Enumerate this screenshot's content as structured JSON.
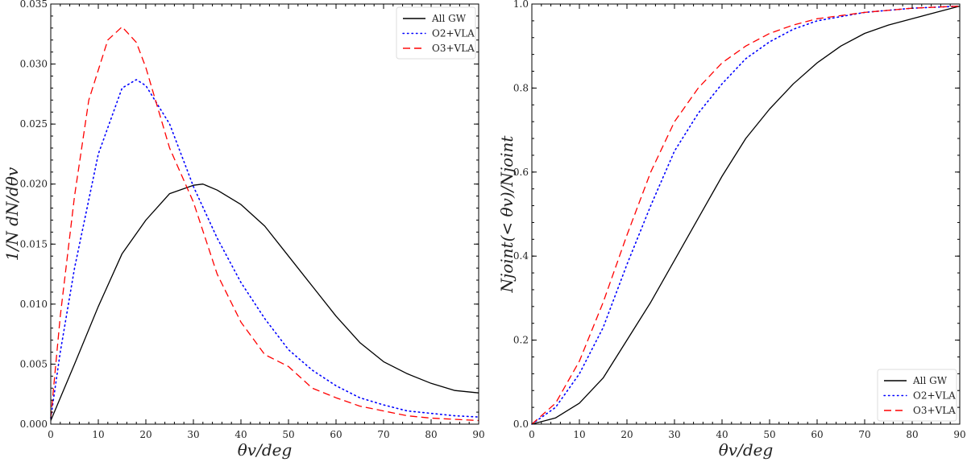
{
  "chart_data": [
    {
      "type": "line",
      "xlabel": "θv/deg",
      "ylabel": "1/N dN/dθv",
      "xlim": [
        0,
        90
      ],
      "ylim": [
        0,
        0.035
      ],
      "xticks": [
        "0",
        "10",
        "20",
        "30",
        "40",
        "50",
        "60",
        "70",
        "80",
        "90"
      ],
      "yticks": [
        "0.000",
        "0.005",
        "0.010",
        "0.015",
        "0.020",
        "0.025",
        "0.030",
        "0.035"
      ],
      "grid": false,
      "legend": "top-right",
      "series": [
        {
          "name": "All GW",
          "color": "#000000",
          "style": "solid",
          "x": [
            0,
            5,
            10,
            15,
            20,
            25,
            30,
            32,
            35,
            40,
            45,
            50,
            55,
            60,
            65,
            70,
            75,
            80,
            85,
            90
          ],
          "y": [
            0.0003,
            0.005,
            0.0098,
            0.0142,
            0.017,
            0.0192,
            0.0199,
            0.02,
            0.0195,
            0.0183,
            0.0165,
            0.014,
            0.0115,
            0.009,
            0.0068,
            0.0052,
            0.0042,
            0.0034,
            0.0028,
            0.0026
          ]
        },
        {
          "name": "O2+VLA",
          "color": "#0000ff",
          "style": "dotted",
          "x": [
            0,
            2,
            5,
            10,
            15,
            18,
            20,
            25,
            30,
            35,
            40,
            45,
            50,
            55,
            60,
            65,
            70,
            75,
            80,
            85,
            90
          ],
          "y": [
            0.0005,
            0.006,
            0.013,
            0.0225,
            0.028,
            0.0287,
            0.0282,
            0.025,
            0.0198,
            0.0155,
            0.0118,
            0.0088,
            0.0062,
            0.0045,
            0.0032,
            0.0022,
            0.0016,
            0.0011,
            0.0009,
            0.0007,
            0.0006
          ]
        },
        {
          "name": "O3+VLA",
          "color": "#ff0000",
          "style": "dashed",
          "x": [
            0,
            2,
            5,
            8,
            10,
            12,
            15,
            18,
            20,
            25,
            30,
            35,
            40,
            45,
            50,
            55,
            60,
            65,
            70,
            75,
            80,
            85,
            90
          ],
          "y": [
            0.0005,
            0.009,
            0.019,
            0.027,
            0.0295,
            0.032,
            0.0331,
            0.0318,
            0.0297,
            0.023,
            0.0185,
            0.0125,
            0.0085,
            0.0058,
            0.0048,
            0.003,
            0.0022,
            0.0015,
            0.0011,
            0.0007,
            0.0005,
            0.0004,
            0.0003
          ]
        }
      ]
    },
    {
      "type": "line",
      "xlabel": "θv/deg",
      "ylabel": "Njoint(< θv)/Njoint",
      "xlim": [
        0,
        90
      ],
      "ylim": [
        0,
        1.0
      ],
      "xticks": [
        "0",
        "10",
        "20",
        "30",
        "40",
        "50",
        "60",
        "70",
        "80",
        "90"
      ],
      "yticks": [
        "0.0",
        "0.2",
        "0.4",
        "0.6",
        "0.8",
        "1.0"
      ],
      "grid": false,
      "legend": "bottom-right",
      "series": [
        {
          "name": "All GW",
          "color": "#000000",
          "style": "solid",
          "x": [
            0,
            5,
            10,
            15,
            20,
            25,
            30,
            35,
            40,
            45,
            50,
            55,
            60,
            65,
            70,
            75,
            80,
            85,
            90
          ],
          "y": [
            0,
            0.015,
            0.05,
            0.11,
            0.2,
            0.29,
            0.39,
            0.49,
            0.59,
            0.68,
            0.75,
            0.81,
            0.86,
            0.9,
            0.93,
            0.95,
            0.965,
            0.98,
            0.995
          ]
        },
        {
          "name": "O2+VLA",
          "color": "#0000ff",
          "style": "dotted",
          "x": [
            0,
            5,
            10,
            15,
            20,
            25,
            30,
            35,
            40,
            45,
            50,
            55,
            60,
            70,
            80,
            90
          ],
          "y": [
            0,
            0.04,
            0.12,
            0.23,
            0.38,
            0.52,
            0.65,
            0.74,
            0.81,
            0.87,
            0.91,
            0.94,
            0.96,
            0.98,
            0.99,
            0.995
          ]
        },
        {
          "name": "O3+VLA",
          "color": "#ff0000",
          "style": "dashed",
          "x": [
            0,
            5,
            10,
            15,
            20,
            25,
            30,
            35,
            40,
            45,
            50,
            55,
            60,
            70,
            80,
            90
          ],
          "y": [
            0,
            0.05,
            0.15,
            0.29,
            0.45,
            0.6,
            0.72,
            0.8,
            0.86,
            0.9,
            0.93,
            0.95,
            0.965,
            0.98,
            0.99,
            0.995
          ]
        }
      ]
    }
  ]
}
